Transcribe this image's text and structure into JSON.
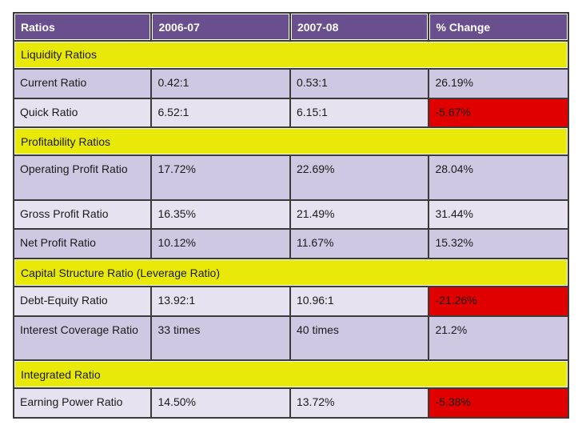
{
  "header": [
    "Ratios",
    "2006-07",
    "2007-08",
    "% Change"
  ],
  "sections": [
    {
      "title": "Liquidity Ratios",
      "rows": [
        {
          "name": "Current Ratio",
          "y2006": "0.42:1",
          "y2007": "0.53:1",
          "change": "26.19%",
          "negative": false
        },
        {
          "name": "Quick Ratio",
          "y2006": "6.52:1",
          "y2007": "6.15:1",
          "change": "-5.67%",
          "negative": true
        }
      ]
    },
    {
      "title": "Profitability Ratios",
      "rows": [
        {
          "name": "Operating Profit Ratio",
          "y2006": "17.72%",
          "y2007": "22.69%",
          "change": "28.04%",
          "negative": false
        },
        {
          "name": "Gross Profit Ratio",
          "y2006": "16.35%",
          "y2007": "21.49%",
          "change": "31.44%",
          "negative": false
        },
        {
          "name": "Net Profit Ratio",
          "y2006": "10.12%",
          "y2007": "11.67%",
          "change": "15.32%",
          "negative": false
        }
      ]
    },
    {
      "title": "Capital Structure Ratio (Leverage Ratio)",
      "rows": [
        {
          "name": "Debt-Equity Ratio",
          "y2006": "13.92:1",
          "y2007": "10.96:1",
          "change": "-21.26%",
          "negative": true
        },
        {
          "name": "Interest Coverage Ratio",
          "y2006": "33 times",
          "y2007": "40 times",
          "change": "21.2%",
          "negative": false
        }
      ]
    },
    {
      "title": "Integrated Ratio",
      "rows": [
        {
          "name": "Earning Power Ratio",
          "y2006": "14.50%",
          "y2007": "13.72%",
          "change": "-5.38%",
          "negative": true
        }
      ]
    }
  ],
  "colors": {
    "header_bg": "#6a4f8e",
    "section_bg": "#e8e809",
    "row_bg": "#cfc8e2",
    "row_bg_alt": "#e6e2f0",
    "negative_bg": "#e00000"
  }
}
